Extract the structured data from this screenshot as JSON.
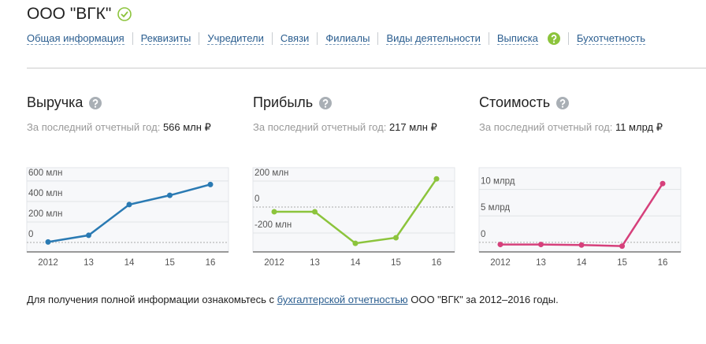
{
  "header": {
    "title": "ООО \"ВГК\""
  },
  "nav": {
    "items": [
      "Общая информация",
      "Реквизиты",
      "Учредители",
      "Связи",
      "Филиалы",
      "Виды деятельности",
      "Выписка",
      "Бухотчетность"
    ]
  },
  "chart_data": [
    {
      "type": "line",
      "title": "Выручка",
      "subtitle": "За последний отчетный год:",
      "latest_value": "566 млн ₽",
      "color": "#2a7ab3",
      "categories": [
        "2012",
        "13",
        "14",
        "15",
        "16"
      ],
      "values": [
        5,
        70,
        370,
        460,
        566
      ],
      "ylim": [
        -92,
        730
      ],
      "yticks": [
        0,
        {
          "value": 200,
          "label": "200 млн"
        },
        {
          "value": 400,
          "label": "400 млн"
        },
        {
          "value": 600,
          "label": "600 млн"
        }
      ],
      "grid": true
    },
    {
      "type": "line",
      "title": "Прибыль",
      "subtitle": "За последний отчетный год:",
      "latest_value": "217 млн ₽",
      "color": "#8cc43c",
      "categories": [
        "2012",
        "13",
        "14",
        "15",
        "16"
      ],
      "values": [
        -36,
        -36,
        -279,
        -236,
        217
      ],
      "ylim": [
        -345,
        303
      ],
      "yticks": [
        {
          "value": -200,
          "label": "-200 млн"
        },
        0,
        {
          "value": 200,
          "label": "200 млн"
        }
      ],
      "grid": true
    },
    {
      "type": "line",
      "title": "Стоимость",
      "subtitle": "За последний отчетный год:",
      "latest_value": "11 млрд ₽",
      "color": "#d6407b",
      "categories": [
        "2012",
        "13",
        "14",
        "15",
        "16"
      ],
      "values": [
        -0.4,
        -0.4,
        -0.5,
        -0.7,
        11.1
      ],
      "ylim": [
        -1.8,
        14.1
      ],
      "yticks": [
        0,
        {
          "value": 5,
          "label": "5 млрд"
        },
        {
          "value": 10,
          "label": "10 млрд"
        }
      ],
      "grid": true
    }
  ],
  "footer": {
    "before": "Для получения полной информации ознакомьтесь с ",
    "link": "бухгалтерской отчетностью",
    "after": " ООО \"ВГК\" за 2012–2016 годы."
  }
}
